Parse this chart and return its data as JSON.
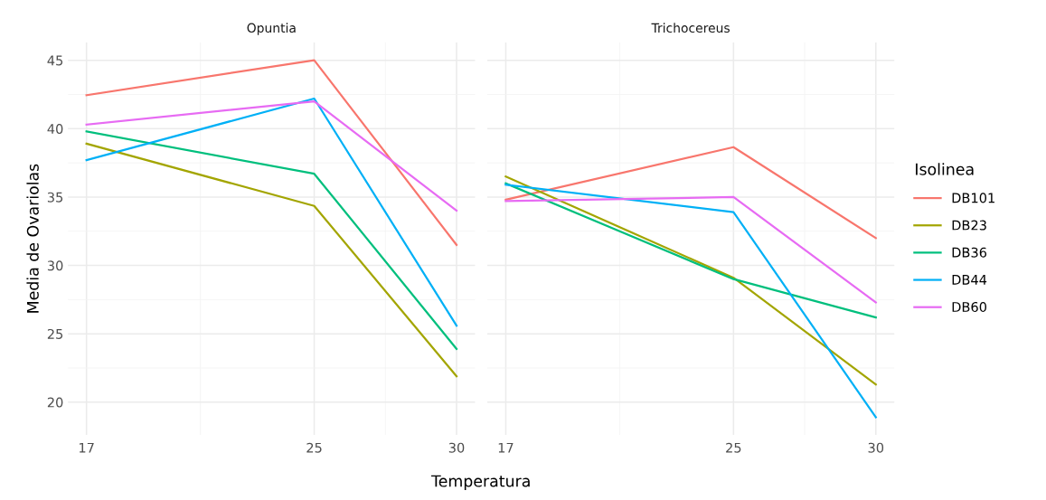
{
  "chart_data": [
    {
      "type": "line",
      "title": "Opuntia",
      "xlabel": "Temperatura",
      "ylabel": "Media de Ovariolas",
      "x": [
        17,
        25,
        30
      ],
      "xlim": [
        16.35,
        30.65
      ],
      "xticks": [
        17,
        25,
        30
      ],
      "ylim": [
        17.6,
        46.3
      ],
      "yticks": [
        20,
        25,
        30,
        35,
        40,
        45
      ],
      "grid": true,
      "legend": false,
      "series": [
        {
          "color": "#f8766d",
          "values": [
            42.45,
            45.0,
            31.5
          ]
        },
        {
          "color": "#a3a500",
          "values": [
            38.9,
            34.35,
            21.9
          ]
        },
        {
          "color": "#00bf7d",
          "values": [
            39.8,
            36.7,
            23.9
          ]
        },
        {
          "color": "#00b0f6",
          "values": [
            37.7,
            42.2,
            25.6
          ]
        },
        {
          "color": "#e76bf3",
          "values": [
            40.3,
            42.0,
            34.0
          ]
        }
      ]
    },
    {
      "type": "line",
      "title": "Trichocereus",
      "legend_title": "Isolinea",
      "x": [
        17,
        25,
        30
      ],
      "xlim": [
        16.35,
        30.65
      ],
      "xticks": [
        17,
        25,
        30
      ],
      "ylim": [
        17.6,
        46.3
      ],
      "yticks": [
        20,
        25,
        30,
        35,
        40,
        45
      ],
      "grid": true,
      "legend": "right",
      "tick_labels": "x",
      "series": [
        {
          "name": "DB101",
          "color": "#f8766d",
          "values": [
            34.8,
            38.65,
            32.0
          ]
        },
        {
          "name": "DB23",
          "color": "#a3a500",
          "values": [
            36.5,
            29.1,
            21.3
          ]
        },
        {
          "name": "DB36",
          "color": "#00bf7d",
          "values": [
            36.0,
            29.0,
            26.2
          ]
        },
        {
          "name": "DB44",
          "color": "#00b0f6",
          "values": [
            35.9,
            33.9,
            18.9
          ]
        },
        {
          "name": "DB60",
          "color": "#e76bf3",
          "values": [
            34.7,
            35.0,
            27.3
          ]
        }
      ]
    }
  ]
}
